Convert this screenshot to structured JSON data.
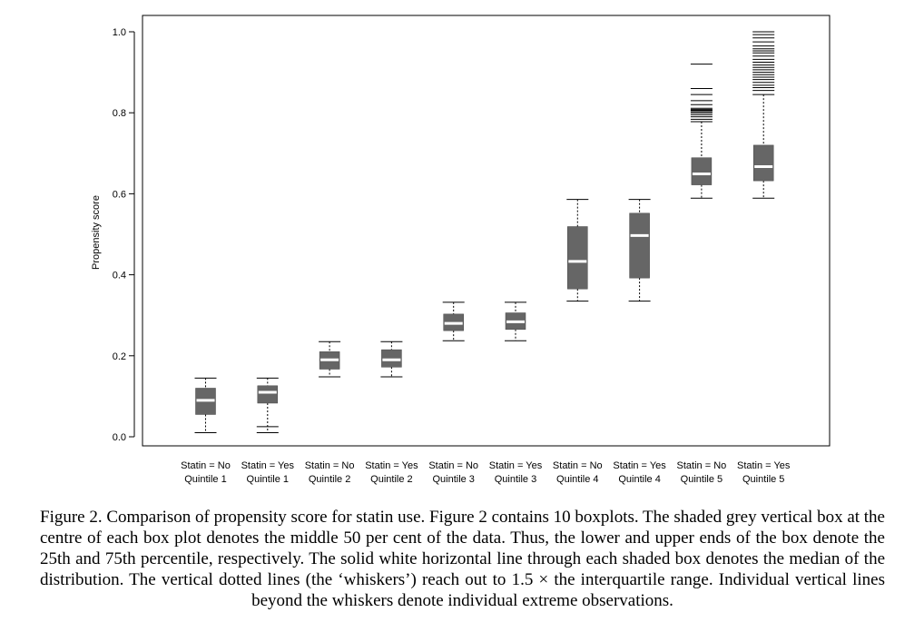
{
  "chart_data": {
    "type": "boxplot",
    "ylabel": "Propensity score",
    "ylim": [
      0.0,
      1.0
    ],
    "yticks": [
      {
        "value": 0.0,
        "label": "0.0"
      },
      {
        "value": 0.2,
        "label": "0.2"
      },
      {
        "value": 0.4,
        "label": "0.4"
      },
      {
        "value": 0.6,
        "label": "0.6"
      },
      {
        "value": 0.8,
        "label": "0.8"
      },
      {
        "value": 1.0,
        "label": "1.0"
      }
    ],
    "grid": false,
    "box_color": "#666666",
    "median_color": "#ffffff",
    "categories": [
      {
        "line1": "Statin = No",
        "line2": "Quintile 1",
        "whisker_low": 0.01,
        "q1": 0.055,
        "median": 0.09,
        "q3": 0.12,
        "whisker_high": 0.145,
        "outliers": []
      },
      {
        "line1": "Statin = Yes",
        "line2": "Quintile 1",
        "whisker_low": 0.01,
        "q1": 0.083,
        "median": 0.11,
        "q3": 0.126,
        "whisker_high": 0.145,
        "outliers": [
          0.025
        ]
      },
      {
        "line1": "Statin = No",
        "line2": "Quintile 2",
        "whisker_low": 0.148,
        "q1": 0.167,
        "median": 0.19,
        "q3": 0.21,
        "whisker_high": 0.235,
        "outliers": []
      },
      {
        "line1": "Statin = Yes",
        "line2": "Quintile 2",
        "whisker_low": 0.148,
        "q1": 0.172,
        "median": 0.19,
        "q3": 0.215,
        "whisker_high": 0.235,
        "outliers": []
      },
      {
        "line1": "Statin = No",
        "line2": "Quintile 3",
        "whisker_low": 0.237,
        "q1": 0.262,
        "median": 0.28,
        "q3": 0.303,
        "whisker_high": 0.332,
        "outliers": []
      },
      {
        "line1": "Statin = Yes",
        "line2": "Quintile 3",
        "whisker_low": 0.237,
        "q1": 0.265,
        "median": 0.284,
        "q3": 0.306,
        "whisker_high": 0.332,
        "outliers": []
      },
      {
        "line1": "Statin = No",
        "line2": "Quintile 4",
        "whisker_low": 0.335,
        "q1": 0.365,
        "median": 0.433,
        "q3": 0.519,
        "whisker_high": 0.586,
        "outliers": []
      },
      {
        "line1": "Statin = Yes",
        "line2": "Quintile 4",
        "whisker_low": 0.335,
        "q1": 0.392,
        "median": 0.497,
        "q3": 0.552,
        "whisker_high": 0.586,
        "outliers": []
      },
      {
        "line1": "Statin = No",
        "line2": "Quintile 5",
        "whisker_low": 0.589,
        "q1": 0.622,
        "median": 0.649,
        "q3": 0.689,
        "whisker_high": 0.778,
        "outliers": [
          0.784,
          0.79,
          0.795,
          0.8,
          0.803,
          0.806,
          0.808,
          0.811,
          0.82,
          0.83,
          0.845,
          0.86,
          0.92
        ]
      },
      {
        "line1": "Statin = Yes",
        "line2": "Quintile 5",
        "whisker_low": 0.589,
        "q1": 0.632,
        "median": 0.667,
        "q3": 0.72,
        "whisker_high": 0.845,
        "outliers": [
          0.855,
          0.862,
          0.868,
          0.875,
          0.882,
          0.888,
          0.894,
          0.9,
          0.906,
          0.912,
          0.918,
          0.925,
          0.932,
          0.94,
          0.948,
          0.953,
          0.958,
          0.965,
          0.975,
          0.985,
          0.993,
          1.0
        ]
      }
    ]
  },
  "caption": "Figure 2. Comparison of propensity score for statin use. Figure 2 contains 10 boxplots. The shaded grey vertical box at the centre of each box plot denotes the middle 50 per cent of the data. Thus, the lower and upper ends of the box denote the 25th and 75th percentile, respectively. The solid white horizontal line through each shaded box denotes the median of the distribution. The vertical dotted lines (the ‘whiskers’) reach out to 1.5 × the interquartile range. Individual vertical lines beyond the whiskers denote individual extreme observations."
}
